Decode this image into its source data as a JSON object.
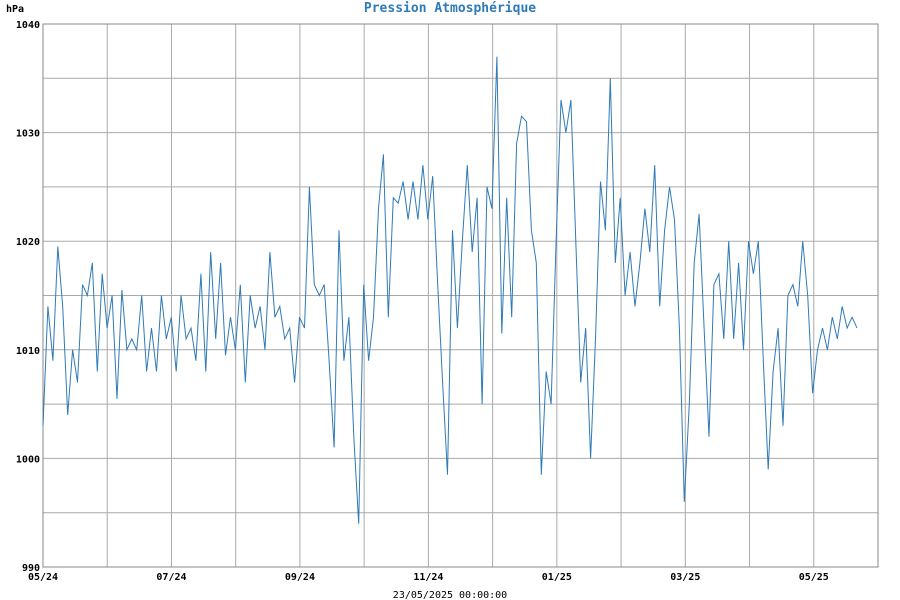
{
  "chart_data": {
    "type": "line",
    "title": "Pression Atmosphérique",
    "ylabel": "hPa",
    "xlabel": "23/05/2025 00:00:00",
    "ylim": [
      990,
      1040
    ],
    "y_ticks": [
      990,
      1000,
      1010,
      1020,
      1030,
      1040
    ],
    "x_ticks": [
      "05/24",
      "07/24",
      "09/24",
      "11/24",
      "01/25",
      "03/25",
      "05/25"
    ],
    "x_range_months": [
      0,
      13
    ],
    "grid": true,
    "colors": {
      "line": "#2f7ab8",
      "title": "#2f7ab8",
      "grid": "#aaaaaa"
    },
    "series": [
      {
        "values": [
          1003,
          1014,
          1009,
          1019.5,
          1014,
          1004,
          1010,
          1007,
          1016,
          1015,
          1018,
          1008,
          1017,
          1012,
          1015,
          1005.5,
          1015.5,
          1010,
          1011,
          1010,
          1015,
          1008,
          1012,
          1008,
          1015,
          1011,
          1013,
          1008,
          1015,
          1011,
          1012,
          1009,
          1017,
          1008,
          1019,
          1011,
          1018,
          1009.5,
          1013,
          1010,
          1016,
          1007,
          1015,
          1012,
          1014,
          1010,
          1019,
          1013,
          1014,
          1011,
          1012,
          1007,
          1013,
          1012,
          1025,
          1016,
          1015,
          1016,
          1009,
          1001,
          1021,
          1009,
          1013,
          1002,
          994,
          1016,
          1009,
          1013,
          1023,
          1028,
          1013,
          1024,
          1023.5,
          1025.5,
          1022,
          1025.5,
          1022,
          1027,
          1022,
          1026,
          1016,
          1007,
          998.5,
          1021,
          1012,
          1020,
          1027,
          1019,
          1024,
          1005,
          1025,
          1023,
          1037,
          1011.5,
          1024,
          1013,
          1029,
          1031.5,
          1031,
          1021,
          1018,
          998.5,
          1008,
          1005,
          1020,
          1033,
          1030,
          1033,
          1020,
          1007,
          1012,
          1000,
          1011,
          1025.5,
          1021,
          1035,
          1018,
          1024,
          1015,
          1019,
          1014,
          1018,
          1023,
          1019,
          1027,
          1014,
          1021,
          1025,
          1022,
          1012,
          996,
          1005,
          1018,
          1022.5,
          1012,
          1002,
          1016,
          1017,
          1011,
          1020,
          1011,
          1018,
          1010,
          1020,
          1017,
          1020,
          1009,
          999,
          1008,
          1012,
          1003,
          1015,
          1016,
          1014,
          1020,
          1015,
          1006,
          1010,
          1012,
          1010,
          1013,
          1011,
          1014,
          1012,
          1013,
          1012
        ]
      }
    ]
  }
}
